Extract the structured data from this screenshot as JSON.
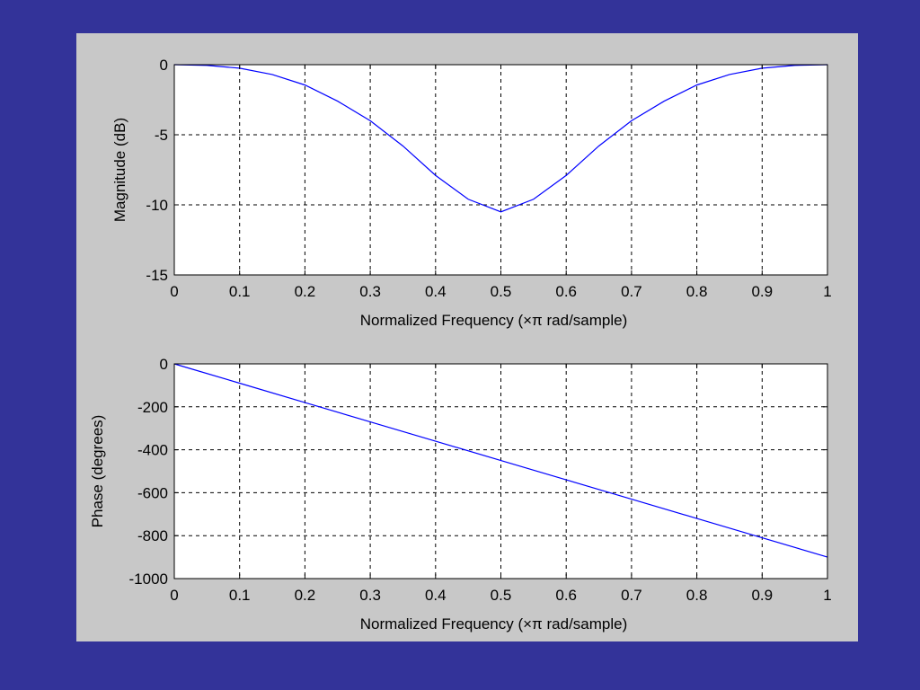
{
  "colors": {
    "background": "#333399",
    "figure": "#c8c8c8",
    "axes": "#ffffff",
    "line": "#0000ff",
    "grid": "#000000"
  },
  "chart_data": [
    {
      "type": "line",
      "title": "",
      "xlabel": "Normalized Frequency  (×π rad/sample)",
      "ylabel": "Magnitude (dB)",
      "xlim": [
        0,
        1
      ],
      "ylim": [
        -15,
        0
      ],
      "x_ticks": [
        0,
        0.1,
        0.2,
        0.3,
        0.4,
        0.5,
        0.6,
        0.7,
        0.8,
        0.9,
        1
      ],
      "x_tick_labels": [
        "0",
        "0.1",
        "0.2",
        "0.3",
        "0.4",
        "0.5",
        "0.6",
        "0.7",
        "0.8",
        "0.9",
        "1"
      ],
      "y_ticks": [
        0,
        -5,
        -10,
        -15
      ],
      "y_tick_labels": [
        "0",
        "-5",
        "-10",
        "-15"
      ],
      "grid": true,
      "series": [
        {
          "x": [
            0,
            0.05,
            0.1,
            0.15,
            0.2,
            0.25,
            0.3,
            0.35,
            0.4,
            0.45,
            0.5,
            0.55,
            0.6,
            0.65,
            0.7,
            0.75,
            0.8,
            0.85,
            0.9,
            0.95,
            1
          ],
          "y": [
            0,
            -0.05,
            -0.25,
            -0.7,
            -1.45,
            -2.6,
            -4.0,
            -5.8,
            -7.9,
            -9.6,
            -10.5,
            -9.6,
            -7.9,
            -5.8,
            -4.0,
            -2.6,
            -1.45,
            -0.7,
            -0.25,
            -0.05,
            0
          ]
        }
      ]
    },
    {
      "type": "line",
      "title": "",
      "xlabel": "Normalized Frequency  (×π rad/sample)",
      "ylabel": "Phase (degrees)",
      "xlim": [
        0,
        1
      ],
      "ylim": [
        -1000,
        0
      ],
      "x_ticks": [
        0,
        0.1,
        0.2,
        0.3,
        0.4,
        0.5,
        0.6,
        0.7,
        0.8,
        0.9,
        1
      ],
      "x_tick_labels": [
        "0",
        "0.1",
        "0.2",
        "0.3",
        "0.4",
        "0.5",
        "0.6",
        "0.7",
        "0.8",
        "0.9",
        "1"
      ],
      "y_ticks": [
        0,
        -200,
        -400,
        -600,
        -800,
        -1000
      ],
      "y_tick_labels": [
        "0",
        "-200",
        "-400",
        "-600",
        "-800",
        "-1000"
      ],
      "grid": true,
      "series": [
        {
          "x": [
            0,
            0.1,
            0.2,
            0.3,
            0.4,
            0.5,
            0.6,
            0.7,
            0.8,
            0.9,
            1
          ],
          "y": [
            0,
            -90,
            -180,
            -270,
            -360,
            -450,
            -540,
            -630,
            -720,
            -810,
            -900
          ]
        }
      ]
    }
  ]
}
